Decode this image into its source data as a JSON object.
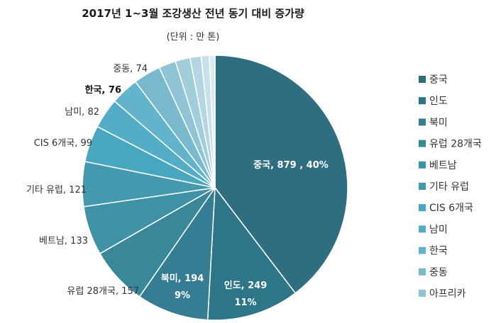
{
  "title": "2017년 1~3월 조강생산 전년 동기 대비 증가량",
  "subtitle": "(단위 : 만 톤)",
  "chart_data": {
    "type": "pie",
    "title": "2017년 1~3월 조강생산 전년 동기 대비 증가량",
    "subtitle": "(단위 : 만 톤)",
    "legend_position": "right",
    "slices": [
      {
        "name": "중국",
        "value": 879,
        "label": "중국, 879 , 40%",
        "color": "#2e6e80"
      },
      {
        "name": "인도",
        "value": 249,
        "label": "인도, 249 , 11%",
        "color": "#2f7589"
      },
      {
        "name": "북미",
        "value": 194,
        "label": "북미, 194 , 9%",
        "color": "#357d92"
      },
      {
        "name": "유럽 28개국",
        "value": 157,
        "label": "유럽 28개국, 157",
        "color": "#3a879a"
      },
      {
        "name": "베트남",
        "value": 133,
        "label": "베트남, 133",
        "color": "#3f91a6"
      },
      {
        "name": "기타 유럽",
        "value": 121,
        "label": "기타 유럽, 121",
        "color": "#4499ae"
      },
      {
        "name": "CIS 6개국",
        "value": 99,
        "label": "CIS 6개국, 99",
        "color": "#48a6bf"
      },
      {
        "name": "남미",
        "value": 82,
        "label": "남미, 82",
        "color": "#54adc6"
      },
      {
        "name": "한국",
        "value": 76,
        "label": "한국, 76",
        "color": "#62b3cb"
      },
      {
        "name": "중동",
        "value": 74,
        "label": "중동, 74",
        "color": "#78b9cd"
      },
      {
        "name": "아프리카",
        "value": 46,
        "label": "",
        "color": "#90c4d4"
      },
      {
        "name": "",
        "value": 40,
        "label": "",
        "color": "#a2cdda"
      },
      {
        "name": "",
        "value": 30,
        "label": "",
        "color": "#b5d6e1"
      },
      {
        "name": "",
        "value": 22,
        "label": "",
        "color": "#c8e0e9"
      },
      {
        "name": "",
        "value": 15,
        "label": "",
        "color": "#dbeaf0"
      }
    ],
    "legend": [
      "중국",
      "인도",
      "북미",
      "유럽 28개국",
      "베트남",
      "기타 유럽",
      "CIS 6개국",
      "남미",
      "한국",
      "중동",
      "아프리카"
    ]
  }
}
